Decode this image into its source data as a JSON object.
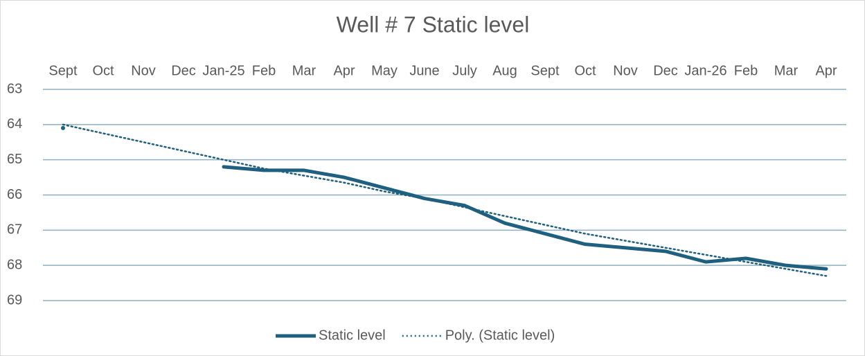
{
  "chart_data": {
    "type": "line",
    "title": "Well # 7 Static level",
    "categories": [
      "Sept",
      "Oct",
      "Nov",
      "Dec",
      "Jan-25",
      "Feb",
      "Mar",
      "Apr",
      "May",
      "June",
      "July",
      "Aug",
      "Sept",
      "Oct",
      "Nov",
      "Dec",
      "Jan-26",
      "Feb",
      "Mar",
      "Apr"
    ],
    "series": [
      {
        "name": "Static level",
        "color": "#1f5f7f",
        "style": "solid",
        "values": [
          64.1,
          null,
          null,
          null,
          65.2,
          65.3,
          65.3,
          65.5,
          65.8,
          66.1,
          66.3,
          66.8,
          67.1,
          67.4,
          67.5,
          67.6,
          67.9,
          67.8,
          68.0,
          68.1
        ]
      },
      {
        "name": "Poly. (Static level)",
        "color": "#1f5f7f",
        "style": "dotted",
        "values": [
          64.0,
          64.25,
          64.5,
          64.75,
          65.0,
          65.25,
          65.45,
          65.65,
          65.9,
          66.1,
          66.35,
          66.6,
          66.85,
          67.1,
          67.3,
          67.5,
          67.7,
          67.9,
          68.1,
          68.3
        ]
      }
    ],
    "ylim": [
      63,
      69
    ],
    "yticks": [
      63,
      64,
      65,
      66,
      67,
      68,
      69
    ],
    "y_inverted": true,
    "grid": true,
    "x_axis_position": "top",
    "legend": "bottom"
  }
}
